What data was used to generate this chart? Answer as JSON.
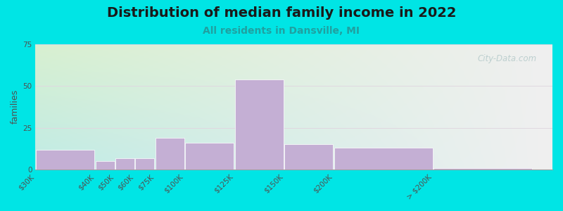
{
  "title": "Distribution of median family income in 2022",
  "subtitle": "All residents in Dansville, MI",
  "ylabel": "families",
  "categories": [
    "$30K",
    "$40K",
    "$50K",
    "$60K",
    "$75K",
    "$100K",
    "$125K",
    "$150K",
    "$200K",
    "> $200K"
  ],
  "values": [
    12,
    5,
    7,
    7,
    19,
    16,
    54,
    15,
    13,
    1
  ],
  "bar_lefts": [
    0,
    30,
    40,
    50,
    60,
    75,
    100,
    125,
    150,
    200
  ],
  "bar_widths": [
    30,
    10,
    10,
    10,
    15,
    25,
    25,
    25,
    50,
    50
  ],
  "bar_color": "#c4afd4",
  "bar_edgecolor": "#ffffff",
  "ylim": [
    0,
    75
  ],
  "xlim": [
    0,
    260
  ],
  "yticks": [
    0,
    25,
    50,
    75
  ],
  "xtick_positions": [
    0,
    30,
    40,
    50,
    60,
    75,
    100,
    125,
    150,
    200,
    250
  ],
  "xtick_labels": [
    "$30K",
    "$40K",
    "$50K",
    "$60K",
    "$75K",
    "$100K",
    "$125K",
    "$150K",
    "$200K",
    "> $200K",
    ""
  ],
  "background_outer": "#00e5e5",
  "title_fontsize": 14,
  "subtitle_fontsize": 10,
  "subtitle_color": "#20a0a0",
  "ylabel_fontsize": 9,
  "tick_fontsize": 7.5,
  "watermark_text": "City-Data.com",
  "watermark_color": "#b8cccc",
  "grid_color": "#e0d8e0",
  "bg_tl": [
    0.847,
    0.941,
    0.816
  ],
  "bg_tr": [
    0.941,
    0.941,
    0.941
  ],
  "bg_bl": [
    0.753,
    0.922,
    0.902
  ],
  "bg_br": [
    0.941,
    0.941,
    0.941
  ]
}
